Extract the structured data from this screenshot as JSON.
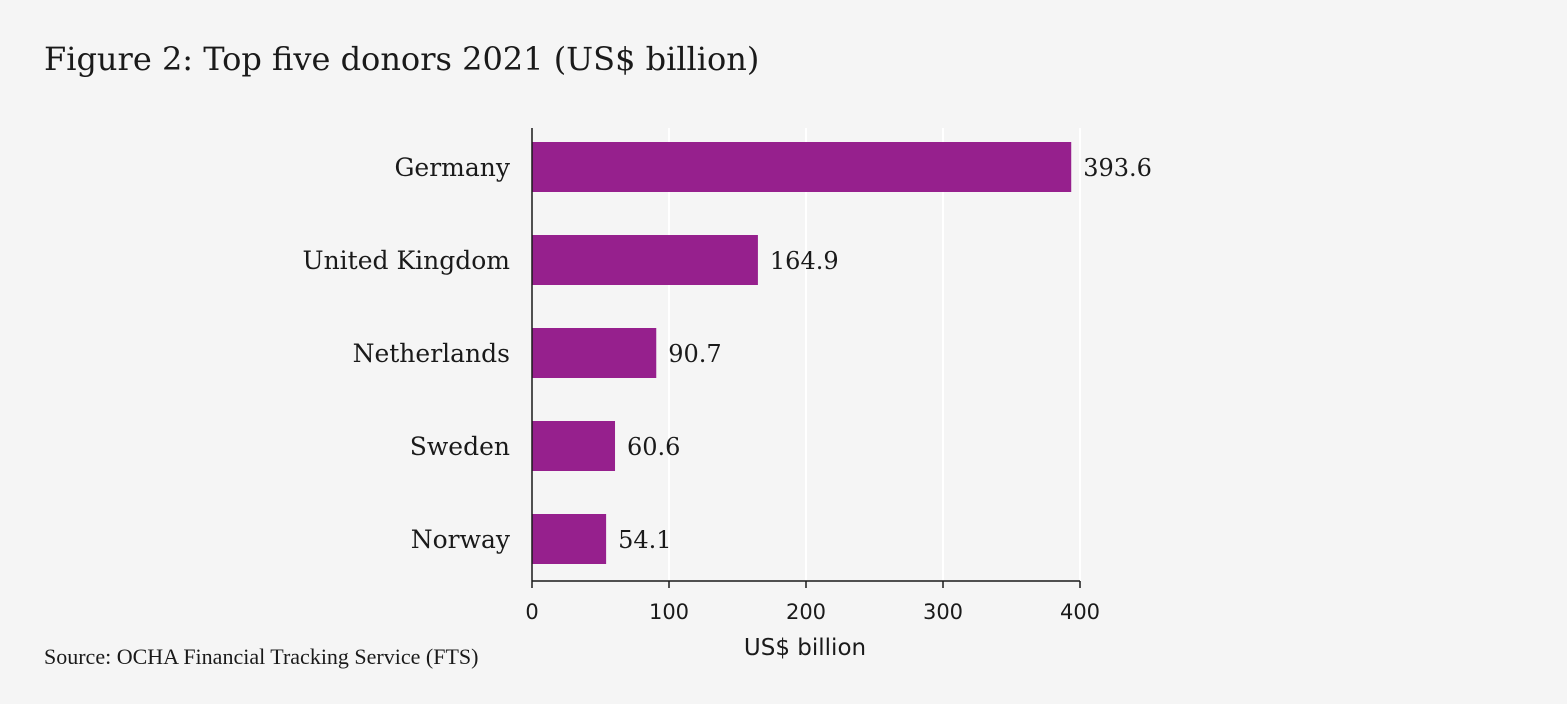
{
  "figure": {
    "title": "Figure 2: Top five donors 2021  (US$ billion)",
    "source": "Source: OCHA Financial Tracking Service (FTS)"
  },
  "colors": {
    "background": "#f5f5f5",
    "bar": "#96208d",
    "gridline": "#ffffff",
    "axis": "#1a1a1a"
  },
  "chart_data": {
    "type": "bar",
    "orientation": "horizontal",
    "title": "Figure 2: Top five donors 2021  (US$ billion)",
    "xlabel": "US$ billion",
    "ylabel": "",
    "categories": [
      "Germany",
      "United Kingdom",
      "Netherlands",
      "Sweden",
      "Norway"
    ],
    "values": [
      393.6,
      164.9,
      90.7,
      60.6,
      54.1
    ],
    "value_labels": [
      "393.6",
      "164.9",
      "90.7",
      "60.6",
      "54.1"
    ],
    "xlim": [
      0,
      400
    ],
    "xticks": [
      0,
      100,
      200,
      300,
      400
    ],
    "xtick_labels": [
      "0",
      "100",
      "200",
      "300",
      "400"
    ],
    "grid": true,
    "legend": "none"
  }
}
